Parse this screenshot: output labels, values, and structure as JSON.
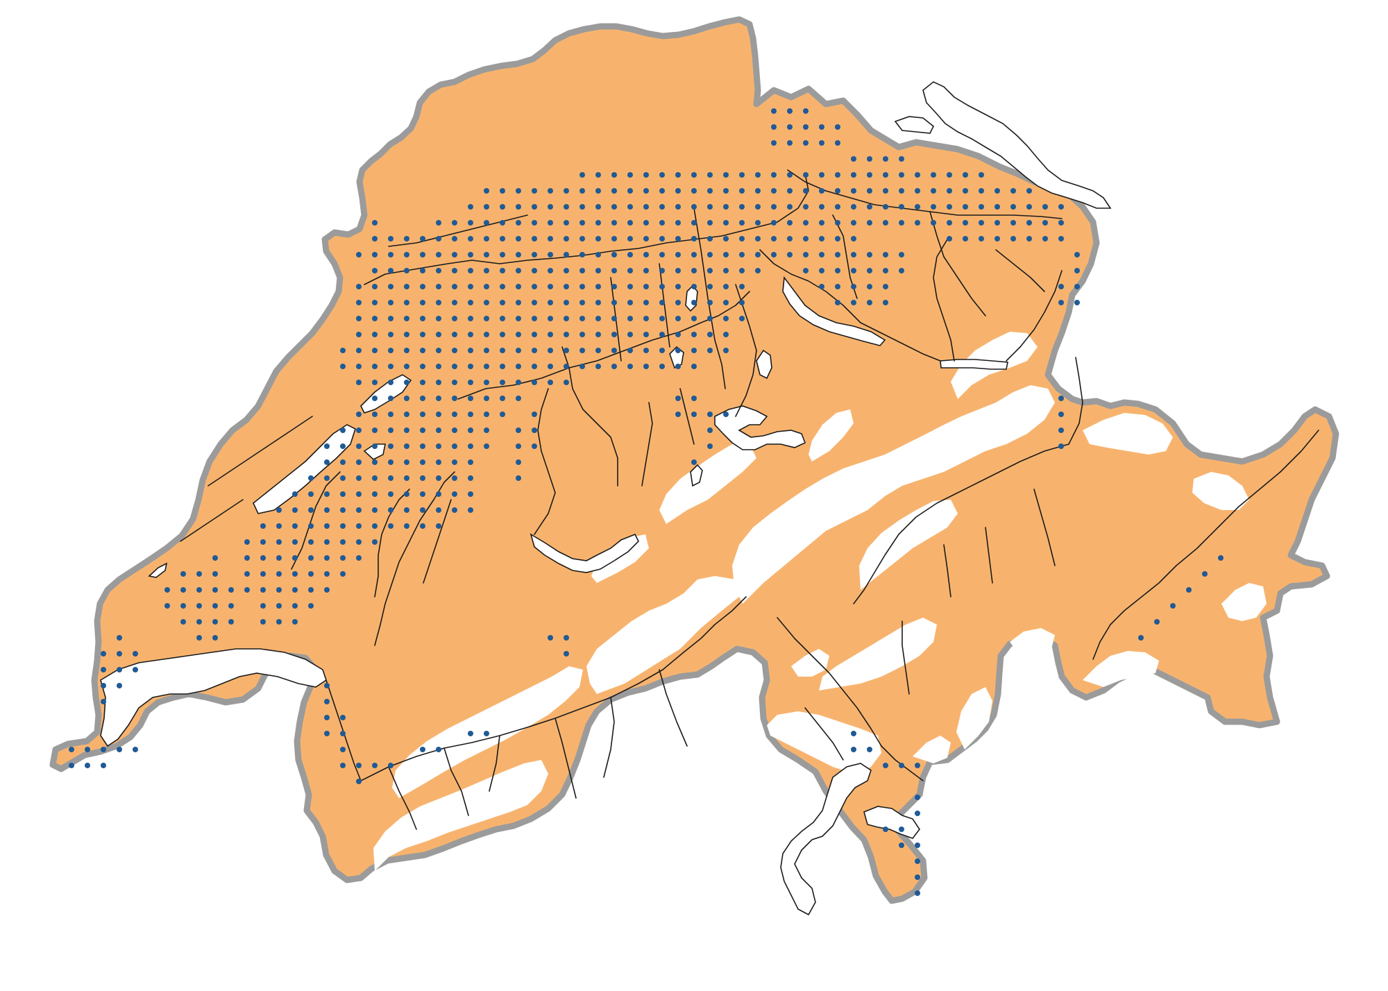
{
  "map": {
    "country": "Switzerland",
    "colors": {
      "lowland_fill": "#f7b36e",
      "alpine_fill": "#ffffff",
      "border_stroke": "#9b9b9b",
      "river_stroke": "#1a1a1a",
      "dot_fill": "#1f5a96"
    },
    "layers": [
      "country-border",
      "alpine-zones",
      "lakes",
      "rivers",
      "occurrence-dots"
    ],
    "dot_spacing_px": 23
  }
}
